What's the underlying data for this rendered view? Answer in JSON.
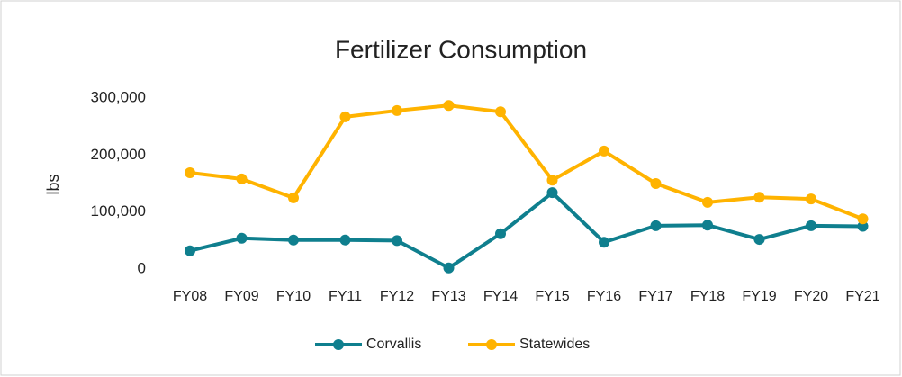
{
  "chart_data": {
    "type": "line",
    "title": "Fertilizer Consumption",
    "y_label": "lbs",
    "categories": [
      "FY08",
      "FY09",
      "FY10",
      "FY11",
      "FY12",
      "FY13",
      "FY14",
      "FY15",
      "FY16",
      "FY17",
      "FY18",
      "FY19",
      "FY20",
      "FY21"
    ],
    "series": [
      {
        "name": "Corvallis",
        "color": "#0f7f8e",
        "values": [
          32000,
          54000,
          51000,
          51000,
          50000,
          2000,
          62000,
          134000,
          47000,
          76000,
          77000,
          52000,
          76000,
          75000
        ]
      },
      {
        "name": "Statewides",
        "color": "#ffb300",
        "values": [
          169000,
          158000,
          125000,
          267000,
          278000,
          287000,
          276000,
          156000,
          207000,
          150000,
          117000,
          126000,
          123000,
          88000
        ]
      }
    ],
    "ylim": [
      0,
      300000
    ],
    "yticks": [
      0,
      {
        "value": 100000,
        "label": "100,000"
      },
      {
        "value": 200000,
        "label": "200,000"
      },
      {
        "value": 300000,
        "label": "300,000"
      }
    ],
    "grid": false,
    "legend": "bottom"
  }
}
